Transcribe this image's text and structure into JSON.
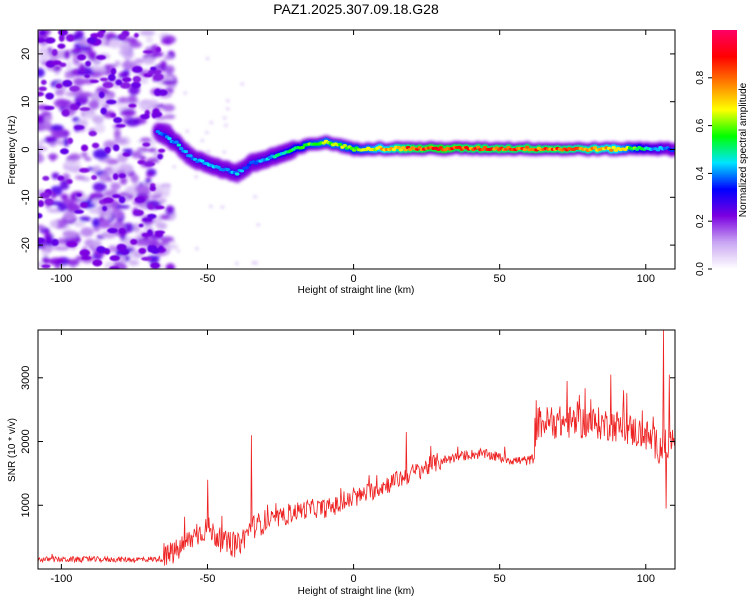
{
  "page_title": "PAZ1.2025.307.09.18.G28",
  "chart_data": [
    {
      "type": "heatmap",
      "title": "PAZ1.2025.307.09.18.G28",
      "xlabel": "Height of straight line (km)",
      "ylabel": "Frequency (Hz)",
      "xlim": [
        -108,
        110
      ],
      "ylim": [
        -25,
        25
      ],
      "xticks": [
        -100,
        -50,
        0,
        50,
        100
      ],
      "yticks": [
        -20,
        -10,
        0,
        10,
        20
      ],
      "colorbar": {
        "label": "Normalized spectral amplitude",
        "range": [
          0,
          1
        ],
        "ticks": [
          "0.0",
          "0.2",
          "0.4",
          "0.6",
          "0.8"
        ],
        "colors": [
          "#ffffff",
          "#c9a6f2",
          "#7b00e0",
          "#0000ff",
          "#00e5ff",
          "#00ff00",
          "#ffff00",
          "#ff7f00",
          "#ff0000",
          "#ff0066"
        ]
      },
      "ridge": {
        "x": [
          -67,
          -60,
          -55,
          -50,
          -45,
          -40,
          -35,
          -30,
          -25,
          -20,
          -15,
          -10,
          -5,
          0,
          5,
          10,
          20,
          30,
          40,
          50,
          60,
          70,
          80,
          90,
          100,
          110
        ],
        "y": [
          4,
          1,
          -2,
          -3,
          -4,
          -5,
          -3,
          -2,
          -1,
          0,
          1,
          1.5,
          1,
          0,
          0.3,
          0.2,
          0.2,
          0.2,
          0.2,
          0.2,
          0.2,
          0.1,
          0.1,
          0.1,
          0.3,
          0
        ],
        "amplitude": [
          0.4,
          0.45,
          0.4,
          0.45,
          0.4,
          0.45,
          0.4,
          0.45,
          0.5,
          0.55,
          0.6,
          0.65,
          0.65,
          0.6,
          0.65,
          0.75,
          0.85,
          0.9,
          0.85,
          0.85,
          0.85,
          0.85,
          0.8,
          0.75,
          0.5,
          0.35
        ]
      },
      "noise_region_x": [
        -108,
        -65
      ]
    },
    {
      "type": "line",
      "xlabel": "Height of straight line (km)",
      "ylabel": "SNR (10 * v/v)",
      "xlim": [
        -108,
        110
      ],
      "ylim": [
        0,
        3750
      ],
      "xticks": [
        -100,
        -50,
        0,
        50,
        100
      ],
      "yticks": [
        1000,
        2000,
        3000
      ],
      "color": "#ee2222",
      "x": [
        -108,
        -100,
        -90,
        -80,
        -70,
        -65,
        -60,
        -55,
        -50,
        -45,
        -40,
        -35,
        -30,
        -25,
        -20,
        -15,
        -10,
        -5,
        0,
        5,
        10,
        15,
        20,
        25,
        30,
        35,
        40,
        45,
        50,
        55,
        60,
        62,
        63,
        70,
        80,
        90,
        100,
        105,
        110
      ],
      "y": [
        150,
        150,
        150,
        150,
        150,
        160,
        300,
        500,
        650,
        430,
        350,
        650,
        750,
        800,
        900,
        950,
        950,
        1000,
        1100,
        1200,
        1300,
        1400,
        1500,
        1600,
        1700,
        1750,
        1800,
        1800,
        1750,
        1700,
        1700,
        1750,
        2300,
        2300,
        2300,
        2250,
        2100,
        1900,
        2000
      ],
      "spikes": [
        {
          "x": -50,
          "y": 1400
        },
        {
          "x": -35,
          "y": 2100
        },
        {
          "x": 18,
          "y": 2150
        },
        {
          "x": 73,
          "y": 2950
        },
        {
          "x": 88,
          "y": 3050
        },
        {
          "x": 106,
          "y": 3750
        },
        {
          "x": 108,
          "y": 3050
        },
        {
          "x": 107,
          "y": 950
        }
      ]
    }
  ]
}
